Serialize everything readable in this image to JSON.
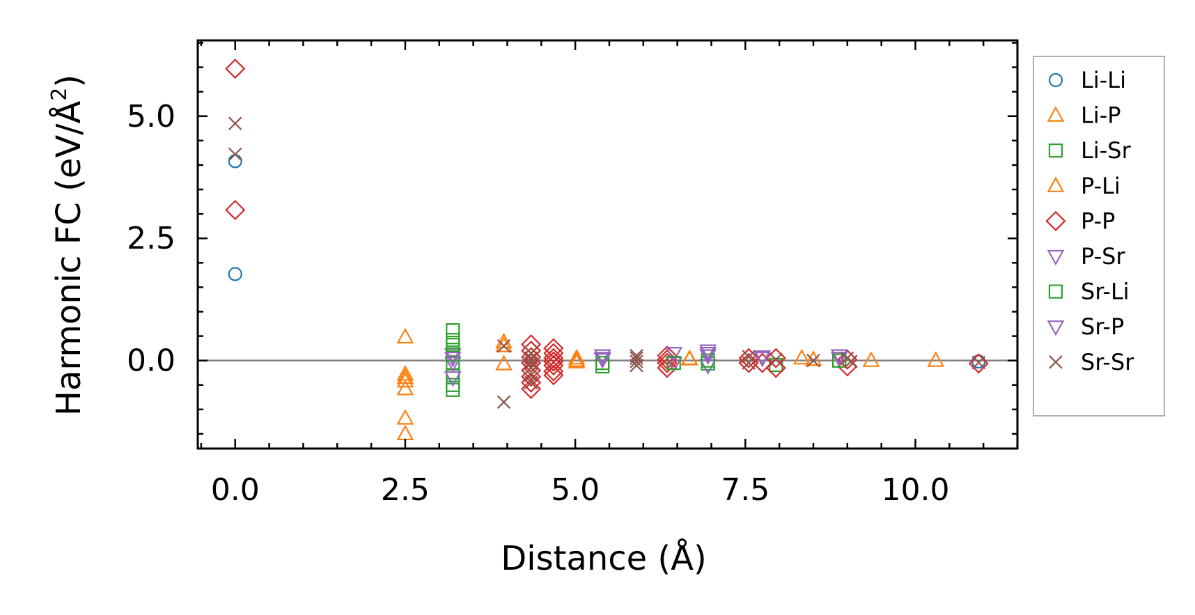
{
  "chart_data": {
    "type": "scatter",
    "title": "",
    "xlabel": "Distance (Å)",
    "ylabel_main": "Harmonic FC (eV/Å",
    "ylabel_sup": "2",
    "ylabel_close": ")",
    "xlim": [
      -0.55,
      11.5
    ],
    "ylim": [
      -1.8,
      6.55
    ],
    "xticks": [
      0.0,
      2.5,
      5.0,
      7.5,
      10.0
    ],
    "xtick_labels": [
      "0.0",
      "2.5",
      "5.0",
      "7.5",
      "10.0"
    ],
    "yticks": [
      0.0,
      2.5,
      5.0
    ],
    "ytick_labels": [
      "0.0",
      "2.5",
      "5.0"
    ],
    "legend_position": "outside-right",
    "zero_line": true,
    "series": [
      {
        "name": "Li-Li",
        "marker": "circle",
        "color": "#1f77b4",
        "x": [
          0.0,
          0.0,
          10.93
        ],
        "y": [
          4.08,
          1.77,
          -0.02
        ]
      },
      {
        "name": "Li-P",
        "marker": "triangle-up",
        "color": "#ff7f0e",
        "x": [
          2.5,
          2.5,
          2.5,
          2.5,
          2.5,
          2.5,
          2.5,
          3.95,
          3.95,
          5.02,
          5.02,
          6.68,
          8.33,
          8.5,
          9.35,
          10.3
        ],
        "y": [
          0.48,
          -0.28,
          -0.35,
          -0.42,
          -0.58,
          -1.18,
          -1.5,
          0.38,
          -0.07,
          0.05,
          -0.03,
          0.04,
          0.05,
          0.02,
          0.0,
          0.0
        ]
      },
      {
        "name": "Li-Sr",
        "marker": "square",
        "color": "#2ca02c",
        "x": [
          3.2,
          3.2,
          3.2,
          3.2,
          3.2,
          3.2,
          3.2,
          5.4,
          6.95,
          8.88,
          7.95
        ],
        "y": [
          0.62,
          0.42,
          0.22,
          -0.06,
          -0.3,
          -0.5,
          -0.6,
          -0.12,
          -0.06,
          0.0,
          -0.09
        ]
      },
      {
        "name": "P-Li",
        "marker": "triangle-up",
        "color": "#ff7f0e",
        "x": [
          3.95,
          5.02,
          6.68
        ],
        "y": [
          0.3,
          0.0,
          0.03
        ]
      },
      {
        "name": "P-P",
        "marker": "diamond",
        "color": "#d62728",
        "x": [
          0.0,
          0.0,
          4.35,
          4.35,
          4.35,
          4.35,
          4.35,
          4.35,
          4.35,
          4.35,
          4.68,
          4.68,
          4.68,
          4.68,
          4.68,
          4.68,
          4.68,
          6.35,
          6.35,
          6.35,
          6.35,
          7.55,
          7.55,
          7.75,
          7.95,
          7.95,
          9.0,
          9.0,
          10.93
        ],
        "y": [
          5.97,
          3.08,
          0.33,
          0.2,
          0.07,
          -0.05,
          -0.2,
          -0.33,
          -0.45,
          -0.58,
          0.25,
          0.15,
          0.05,
          -0.02,
          -0.1,
          -0.22,
          -0.3,
          0.1,
          0.02,
          -0.05,
          -0.15,
          0.05,
          -0.05,
          -0.05,
          0.05,
          -0.15,
          0.02,
          -0.12,
          -0.06
        ]
      },
      {
        "name": "P-Sr",
        "marker": "triangle-down",
        "color": "#9467bd",
        "x": [
          3.2,
          3.2,
          3.2,
          5.4,
          5.4,
          6.45,
          6.45,
          6.95,
          6.95,
          6.95,
          7.75,
          8.88
        ],
        "y": [
          0.12,
          -0.05,
          -0.35,
          0.1,
          0.05,
          0.15,
          -0.05,
          0.2,
          0.1,
          -0.1,
          0.08,
          0.05
        ]
      },
      {
        "name": "Sr-Li",
        "marker": "square",
        "color": "#2ca02c",
        "x": [
          3.2,
          3.2,
          5.4,
          6.45,
          6.95,
          8.88
        ],
        "y": [
          0.32,
          0.12,
          -0.05,
          -0.05,
          0.0,
          0.0
        ]
      },
      {
        "name": "Sr-P",
        "marker": "triangle-down",
        "color": "#9467bd",
        "x": [
          3.2,
          5.4,
          6.95,
          7.75,
          8.88
        ],
        "y": [
          0.05,
          0.02,
          0.15,
          0.05,
          0.1
        ]
      },
      {
        "name": "Sr-Sr",
        "marker": "x",
        "color": "#8c564b",
        "x": [
          0.0,
          0.0,
          3.95,
          3.95,
          4.35,
          4.35,
          4.35,
          4.35,
          4.35,
          4.35,
          5.9,
          5.9,
          5.9,
          5.9,
          7.55,
          7.55,
          7.95,
          8.5,
          9.0,
          9.05,
          10.93
        ],
        "y": [
          4.85,
          4.22,
          0.3,
          -0.85,
          0.15,
          0.05,
          -0.05,
          -0.15,
          -0.3,
          -0.45,
          0.1,
          0.05,
          -0.02,
          -0.1,
          0.08,
          -0.05,
          0.02,
          0.0,
          0.05,
          -0.02,
          -0.04
        ]
      }
    ]
  }
}
